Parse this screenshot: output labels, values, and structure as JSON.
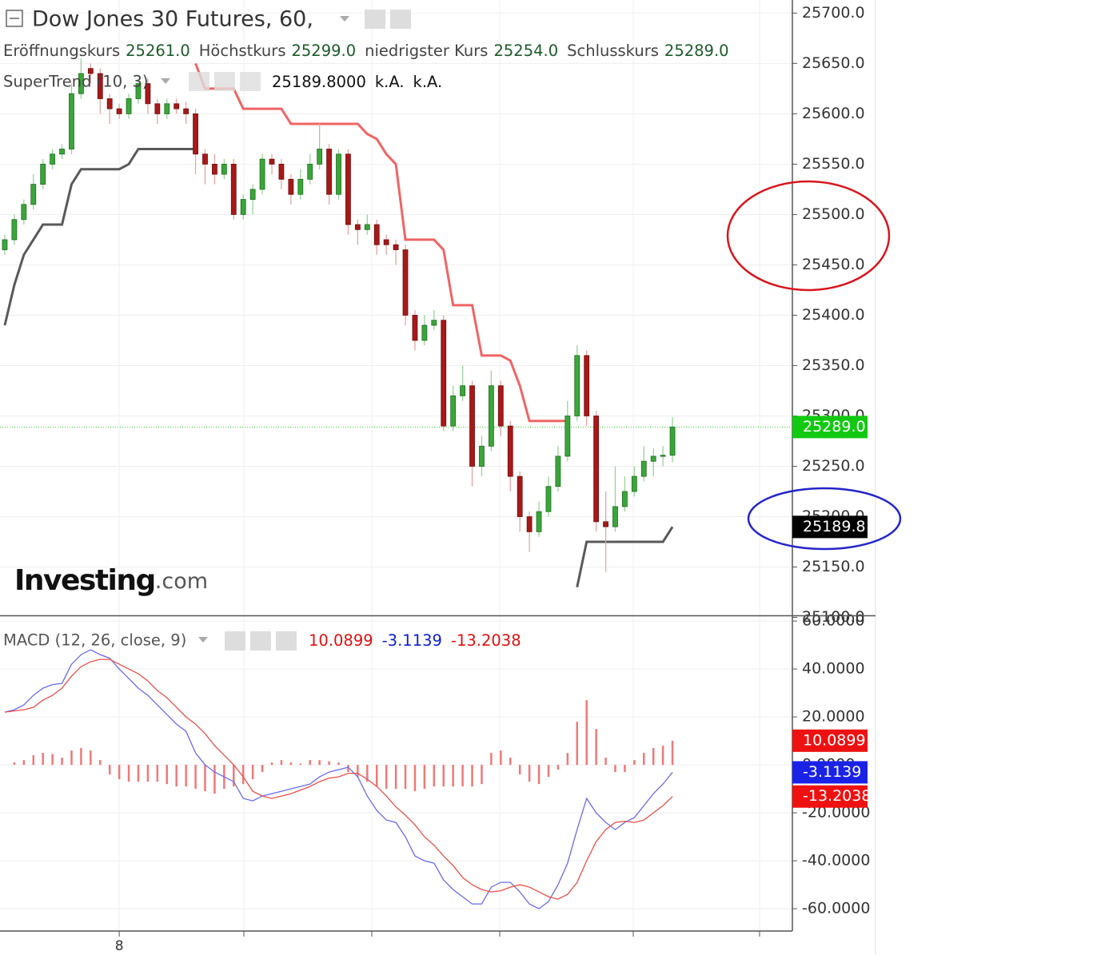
{
  "header": {
    "title": "Dow Jones 30 Futures, 60,",
    "ohlc": [
      {
        "label": "Eröffnungskurs",
        "value": "25261.0"
      },
      {
        "label": "Höchstkurs",
        "value": "25299.0"
      },
      {
        "label": "niedrigster Kurs",
        "value": "25254.0"
      },
      {
        "label": "Schlusskurs",
        "value": "25289.0"
      }
    ],
    "indicator": "SuperTrend (10, 3)",
    "indicator_values": [
      "25189.8000",
      "k.A.",
      "k.A."
    ]
  },
  "logo": {
    "brand": "Investing",
    "suffix": ".com"
  },
  "chart_data": [
    {
      "type": "candlestick",
      "up_color": "#3aa63a",
      "down_color": "#a81818",
      "open": [
        25465,
        25475,
        25495,
        25510,
        25530,
        25550,
        25560,
        25565,
        25620,
        25645,
        25640,
        25615,
        25605,
        25600,
        25615,
        25630,
        25610,
        25600,
        25610,
        25605,
        25600,
        25560,
        25550,
        25540,
        25550,
        25500,
        25515,
        25525,
        25555,
        25550,
        25535,
        25520,
        25535,
        25550,
        25565,
        25520,
        25560,
        25490,
        25485,
        25490,
        25475,
        25470,
        25465,
        25400,
        25375,
        25390,
        25395,
        25290,
        25320,
        25330,
        25250,
        25270,
        25330,
        25290,
        25240,
        25200,
        25185,
        25205,
        25230,
        25260,
        25300,
        25360,
        25300,
        25195,
        25190,
        25210,
        25225,
        25240,
        25255,
        25260,
        25261
      ],
      "high": [
        25480,
        25500,
        25515,
        25540,
        25555,
        25565,
        25570,
        25630,
        25655,
        25650,
        25645,
        25620,
        25610,
        25620,
        25635,
        25635,
        25615,
        25615,
        25615,
        25612,
        25605,
        25565,
        25560,
        25555,
        25555,
        25520,
        25530,
        25560,
        25560,
        25555,
        25540,
        25545,
        25560,
        25590,
        25570,
        25565,
        25565,
        25495,
        25500,
        25495,
        25480,
        25475,
        25470,
        25405,
        25400,
        25405,
        25400,
        25330,
        25350,
        25335,
        25280,
        25345,
        25335,
        25295,
        25245,
        25205,
        25215,
        25240,
        25270,
        25315,
        25370,
        25365,
        25305,
        25225,
        25250,
        25240,
        25250,
        25270,
        25268,
        25270,
        25299
      ],
      "low": [
        25460,
        25470,
        25490,
        25505,
        25525,
        25545,
        25555,
        25560,
        25615,
        25630,
        25600,
        25590,
        25595,
        25595,
        25610,
        25600,
        25590,
        25595,
        25600,
        25590,
        25540,
        25530,
        25530,
        25535,
        25495,
        25495,
        25500,
        25520,
        25540,
        25525,
        25510,
        25515,
        25530,
        25545,
        25510,
        25515,
        25480,
        25470,
        25480,
        25460,
        25460,
        25450,
        25390,
        25365,
        25370,
        25385,
        25285,
        25285,
        25315,
        25230,
        25240,
        25265,
        25280,
        25225,
        25185,
        25165,
        25180,
        25200,
        25225,
        25255,
        25295,
        25290,
        25185,
        25145,
        25185,
        25205,
        25220,
        25235,
        25240,
        25250,
        25254
      ],
      "close": [
        25475,
        25495,
        25510,
        25530,
        25550,
        25560,
        25565,
        25620,
        25640,
        25640,
        25615,
        25605,
        25600,
        25615,
        25630,
        25610,
        25600,
        25610,
        25605,
        25600,
        25560,
        25550,
        25540,
        25550,
        25500,
        25515,
        25525,
        25555,
        25550,
        25535,
        25520,
        25535,
        25550,
        25565,
        25520,
        25560,
        25490,
        25485,
        25490,
        25470,
        25470,
        25465,
        25400,
        25375,
        25390,
        25395,
        25290,
        25320,
        25330,
        25250,
        25270,
        25330,
        25290,
        25240,
        25200,
        25185,
        25205,
        25230,
        25260,
        25300,
        25360,
        25300,
        25195,
        25190,
        25210,
        25225,
        25240,
        25255,
        25260,
        25261,
        25289
      ],
      "series": [
        {
          "color": "#595959",
          "values": [
            25390,
            25430,
            25460,
            25475,
            25490,
            25490,
            25490,
            25530,
            25545,
            25545,
            25545,
            25545,
            25545,
            25550,
            25565,
            25565,
            25565,
            25565,
            25565,
            25565,
            25565,
            null,
            null,
            null,
            null,
            null,
            null,
            null,
            null,
            null,
            null,
            null,
            null,
            null,
            null,
            null,
            null,
            null,
            null,
            null,
            null,
            null,
            null,
            null,
            null,
            null,
            null,
            null,
            null,
            null,
            null,
            null,
            null,
            null,
            null,
            null,
            null,
            null,
            null,
            null,
            25130,
            25175,
            25175,
            25175,
            25175,
            25175,
            25175,
            25175,
            25175,
            25175,
            25189.8
          ]
        },
        {
          "color": "#f06464",
          "values": [
            null,
            null,
            null,
            null,
            null,
            null,
            null,
            null,
            null,
            null,
            null,
            null,
            null,
            null,
            null,
            null,
            null,
            null,
            null,
            null,
            25650,
            25625,
            25625,
            25625,
            25625,
            25605,
            25605,
            25605,
            25605,
            25605,
            25590,
            25590,
            25590,
            25590,
            25590,
            25590,
            25590,
            25590,
            25580,
            25575,
            25560,
            25550,
            25475,
            25475,
            25475,
            25475,
            25465,
            25410,
            25410,
            25410,
            25360,
            25360,
            25360,
            25355,
            25330,
            25295,
            25295,
            25295,
            25295,
            25295,
            null,
            null,
            null,
            null,
            null,
            null,
            null,
            null,
            null,
            null,
            null
          ]
        }
      ],
      "ylim": [
        25102,
        25713
      ],
      "yticks": [
        {
          "value": 25100,
          "label": "25100.0"
        },
        {
          "value": 25150,
          "label": "25150.0"
        },
        {
          "value": 25200,
          "label": "25200.0"
        },
        {
          "value": 25250,
          "label": "25250.0"
        },
        {
          "value": 25300,
          "label": "25300.0"
        },
        {
          "value": 25350,
          "label": "25350.0"
        },
        {
          "value": 25400,
          "label": "25400.0"
        },
        {
          "value": 25450,
          "label": "25450.0"
        },
        {
          "value": 25500,
          "label": "25500.0"
        },
        {
          "value": 25550,
          "label": "25550.0"
        },
        {
          "value": 25600,
          "label": "25600.0"
        },
        {
          "value": 25650,
          "label": "25650.0"
        },
        {
          "value": 25700,
          "label": "25700.0"
        }
      ],
      "grid": true,
      "badges": [
        {
          "label": "25289.0",
          "value": 25289,
          "color": "#12c912"
        },
        {
          "label": "25189.8",
          "value": 25189.8,
          "color": "#000000"
        }
      ]
    },
    {
      "type": "macd",
      "title": "MACD (12, 26, close, 9)",
      "legend_values": [
        {
          "label": "10.0899",
          "color": "#e01010"
        },
        {
          "label": "-3.1139",
          "color": "#1020d0"
        },
        {
          "label": "-13.2038",
          "color": "#e01010"
        }
      ],
      "categories": [
        null,
        null,
        null,
        null,
        null,
        null,
        null,
        null,
        null,
        null,
        null,
        null,
        "8",
        null,
        null,
        null,
        null,
        null,
        null,
        null,
        null,
        null,
        null,
        null,
        null,
        null,
        null,
        null,
        null,
        null,
        null,
        null,
        null,
        null,
        null,
        null,
        null,
        null,
        null,
        null,
        null,
        null,
        null,
        null,
        null,
        null,
        null,
        null,
        null,
        null,
        null,
        null,
        null,
        null,
        null,
        null,
        null,
        null,
        null,
        null,
        null,
        null,
        null,
        null,
        null,
        null,
        null,
        null,
        null,
        null,
        null
      ],
      "histogram": {
        "color": "#f07878",
        "values": [
          0,
          1,
          2,
          4,
          5,
          4.5,
          3,
          6,
          7,
          6,
          2,
          -4,
          -6,
          -7,
          -7,
          -7,
          -7,
          -8,
          -9,
          -9,
          -10,
          -11,
          -12,
          -10,
          -9,
          -8,
          -6,
          -3,
          1,
          2,
          1,
          0.5,
          2,
          2,
          1.5,
          1,
          -3,
          -5,
          -7,
          -9,
          -10,
          -10,
          -10,
          -11,
          -10,
          -9,
          -9,
          -9,
          -9,
          -9,
          -8,
          5,
          6,
          3,
          -4,
          -7,
          -8,
          -5,
          -2,
          5,
          18,
          27,
          15,
          3,
          -3,
          -3,
          2,
          5,
          7,
          8,
          10.0899
        ]
      },
      "series": [
        {
          "color": "#6a6ae8",
          "values": [
            22,
            23,
            25,
            29,
            32,
            33.5,
            34,
            42,
            46,
            48,
            46,
            44.5,
            40,
            36,
            32,
            29,
            25,
            21,
            17,
            14,
            5,
            0,
            -3,
            -5,
            -7,
            -14,
            -15,
            -13,
            -12,
            -11,
            -10,
            -9,
            -8,
            -5,
            -3,
            -2,
            -1,
            -5,
            -13,
            -19,
            -23,
            -24,
            -30,
            -38,
            -40,
            -41,
            -48,
            -52,
            -55,
            -58,
            -58,
            -51,
            -49,
            -49,
            -53,
            -58,
            -60,
            -57,
            -50,
            -41,
            -27,
            -14,
            -20,
            -24,
            -27,
            -24,
            -22,
            -17,
            -12,
            -8,
            -3.1139
          ]
        },
        {
          "color": "#e8504a",
          "values": [
            22,
            22.5,
            23,
            24,
            27,
            29,
            32,
            37,
            41,
            43,
            44,
            44,
            42,
            40,
            38,
            35,
            31,
            28,
            24,
            20,
            17,
            13,
            8,
            4,
            0,
            -5,
            -11,
            -13,
            -14,
            -13,
            -12,
            -10.5,
            -9,
            -7,
            -5.5,
            -5,
            -3.5,
            -3.5,
            -6,
            -9,
            -13,
            -17.5,
            -21,
            -25,
            -30,
            -33.5,
            -38,
            -42,
            -47,
            -50,
            -52,
            -53,
            -52.5,
            -51,
            -50,
            -51,
            -53,
            -55,
            -56,
            -54,
            -49,
            -40,
            -32,
            -27,
            -24,
            -23.5,
            -24,
            -23,
            -20,
            -17,
            -13.2038
          ]
        }
      ],
      "ylim": [
        -69.3,
        61.7
      ],
      "yticks": [
        {
          "value": 60,
          "label": "60.0000"
        },
        {
          "value": 40,
          "label": "40.0000"
        },
        {
          "value": 20,
          "label": "20.0000"
        },
        {
          "value": 0,
          "label": "0.0000"
        },
        {
          "value": -20,
          "label": "-20.0000"
        },
        {
          "value": -40,
          "label": "-40.0000"
        },
        {
          "value": -60,
          "label": "-60.0000"
        }
      ],
      "grid": true,
      "badges": [
        {
          "label": "10.0899",
          "value": 10.0899,
          "color": "#ee1111"
        },
        {
          "label": "-3.1139",
          "value": -3.1139,
          "color": "#1a22e6"
        },
        {
          "label": "-13.2038",
          "value": -13.2038,
          "color": "#ee1111"
        }
      ]
    }
  ]
}
